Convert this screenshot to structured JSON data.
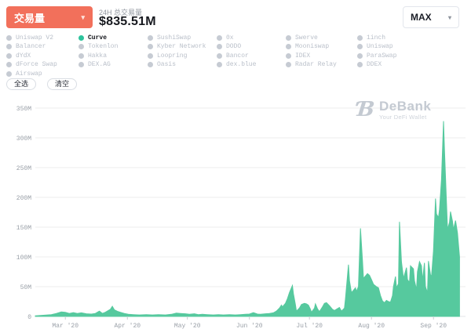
{
  "header": {
    "metric_selector": {
      "label": "交易量",
      "caret": "▾"
    },
    "volume_label": "24H 总交易量",
    "volume_value": "$835.51M",
    "range_selector": {
      "label": "MAX",
      "caret": "▾"
    }
  },
  "legend": {
    "selected": "Curve",
    "columns": [
      [
        "Uniswap V2",
        "Balancer",
        "dYdX",
        "dForce Swap",
        "Airswap"
      ],
      [
        "Curve",
        "Tokenlon",
        "Hakka",
        "DEX.AG"
      ],
      [
        "SushiSwap",
        "Kyber Network",
        "Loopring",
        "Oasis"
      ],
      [
        "0x",
        "DODO",
        "Bancor",
        "dex.blue"
      ],
      [
        "Swerve",
        "Mooniswap",
        "IDEX",
        "Radar Relay"
      ],
      [
        "1inch",
        "Uniswap",
        "ParaSwap",
        "DDEX"
      ]
    ]
  },
  "actions": {
    "select_all": "全选",
    "clear": "清空"
  },
  "watermark": {
    "mark": "Ɓ",
    "name": "DeBank",
    "tagline": "Your DeFi Wallet"
  },
  "colors": {
    "accent_orange": "#f2705b",
    "series_green": "#56c99e",
    "selected_dot": "#2dc39c",
    "grid": "#ececec",
    "axis_text": "#9aa0a8"
  },
  "chart_data": {
    "type": "area",
    "title": "Curve daily trading volume",
    "series_name": "Curve",
    "unit": "USD millions",
    "x_unit": "days since 2020-02-15",
    "xlim": [
      0,
      215
    ],
    "ylim": [
      0,
      360
    ],
    "grid": "horizontal",
    "legend_position": "top",
    "y_ticks": [
      {
        "v": 0,
        "label": "0"
      },
      {
        "v": 50,
        "label": "50M"
      },
      {
        "v": 100,
        "label": "100M"
      },
      {
        "v": 150,
        "label": "150M"
      },
      {
        "v": 200,
        "label": "200M"
      },
      {
        "v": 250,
        "label": "250M"
      },
      {
        "v": 300,
        "label": "300M"
      },
      {
        "v": 350,
        "label": "350M"
      }
    ],
    "x_ticks": [
      {
        "d": 15,
        "label": "Mar '20"
      },
      {
        "d": 46,
        "label": "Apr '20"
      },
      {
        "d": 76,
        "label": "May '20"
      },
      {
        "d": 107,
        "label": "Jun '20"
      },
      {
        "d": 137,
        "label": "Jul '20"
      },
      {
        "d": 168,
        "label": "Aug '20"
      },
      {
        "d": 199,
        "label": "Sep '20"
      }
    ],
    "points": [
      [
        0,
        1
      ],
      [
        4,
        2
      ],
      [
        8,
        3
      ],
      [
        10.5,
        5
      ],
      [
        13,
        7.5
      ],
      [
        15,
        7
      ],
      [
        17,
        5
      ],
      [
        19,
        6.5
      ],
      [
        21,
        5
      ],
      [
        23,
        6
      ],
      [
        25.5,
        4.5
      ],
      [
        28,
        4
      ],
      [
        30,
        5
      ],
      [
        32,
        9
      ],
      [
        33.5,
        5
      ],
      [
        35,
        7
      ],
      [
        36.5,
        10
      ],
      [
        37.5,
        12
      ],
      [
        38.5,
        17
      ],
      [
        39.5,
        11
      ],
      [
        41,
        8.5
      ],
      [
        42.5,
        7
      ],
      [
        44.5,
        5
      ],
      [
        46.5,
        3.5
      ],
      [
        49,
        3
      ],
      [
        52,
        2.5
      ],
      [
        55.5,
        3
      ],
      [
        58.5,
        2.5
      ],
      [
        61.5,
        3
      ],
      [
        65,
        2.5
      ],
      [
        68,
        3.5
      ],
      [
        70.5,
        5.5
      ],
      [
        72.5,
        5
      ],
      [
        75,
        4.5
      ],
      [
        77,
        3.5
      ],
      [
        79.5,
        4.5
      ],
      [
        81.5,
        3
      ],
      [
        83.5,
        3.5
      ],
      [
        86,
        3
      ],
      [
        89,
        2.5
      ],
      [
        91.5,
        3
      ],
      [
        94,
        2.5
      ],
      [
        97,
        3
      ],
      [
        100,
        2.5
      ],
      [
        102.5,
        3
      ],
      [
        105,
        3.5
      ],
      [
        107,
        4
      ],
      [
        109,
        6.5
      ],
      [
        111,
        4
      ],
      [
        112.5,
        3.5
      ],
      [
        115,
        4.5
      ],
      [
        117,
        5
      ],
      [
        119,
        6
      ],
      [
        120.5,
        9
      ],
      [
        122,
        14
      ],
      [
        123,
        19
      ],
      [
        123.5,
        16
      ],
      [
        125,
        22
      ],
      [
        126,
        30
      ],
      [
        127,
        40
      ],
      [
        128.5,
        52
      ],
      [
        129,
        38
      ],
      [
        130,
        20
      ],
      [
        130.5,
        9
      ],
      [
        132,
        14
      ],
      [
        133,
        20
      ],
      [
        134.5,
        22
      ],
      [
        135.5,
        21
      ],
      [
        136.5,
        19
      ],
      [
        137.5,
        12
      ],
      [
        138,
        7
      ],
      [
        139.5,
        14
      ],
      [
        140,
        21
      ],
      [
        141,
        13
      ],
      [
        142,
        8
      ],
      [
        143.5,
        16
      ],
      [
        144.5,
        22
      ],
      [
        145.5,
        23
      ],
      [
        147,
        18
      ],
      [
        148.5,
        12
      ],
      [
        149.5,
        10
      ],
      [
        151,
        13
      ],
      [
        152,
        15
      ],
      [
        153,
        9
      ],
      [
        154.5,
        14
      ],
      [
        155,
        30
      ],
      [
        156.5,
        87
      ],
      [
        157,
        60
      ],
      [
        158,
        40
      ],
      [
        159,
        44
      ],
      [
        160,
        48
      ],
      [
        160.5,
        42
      ],
      [
        161.5,
        50
      ],
      [
        162.5,
        148
      ],
      [
        163.5,
        95
      ],
      [
        164,
        64
      ],
      [
        165,
        68
      ],
      [
        166,
        72
      ],
      [
        167,
        69
      ],
      [
        168,
        62
      ],
      [
        169,
        54
      ],
      [
        170.5,
        50
      ],
      [
        171.5,
        48
      ],
      [
        172.5,
        35
      ],
      [
        173.5,
        26
      ],
      [
        174.5,
        23
      ],
      [
        175.5,
        27
      ],
      [
        176.5,
        25
      ],
      [
        177.5,
        24
      ],
      [
        178.5,
        35
      ],
      [
        179,
        50
      ],
      [
        180,
        67
      ],
      [
        180.5,
        48
      ],
      [
        181.5,
        55
      ],
      [
        182,
        159
      ],
      [
        183,
        92
      ],
      [
        184,
        64
      ],
      [
        184.5,
        70
      ],
      [
        185.5,
        82
      ],
      [
        186,
        62
      ],
      [
        187,
        57
      ],
      [
        187.5,
        85
      ],
      [
        189,
        80
      ],
      [
        189.5,
        60
      ],
      [
        190.5,
        45
      ],
      [
        191,
        75
      ],
      [
        192,
        92
      ],
      [
        193,
        85
      ],
      [
        193.5,
        60
      ],
      [
        194.5,
        90
      ],
      [
        195,
        50
      ],
      [
        196,
        40
      ],
      [
        196.5,
        93
      ],
      [
        197.5,
        70
      ],
      [
        198,
        67
      ],
      [
        199,
        110
      ],
      [
        200,
        198
      ],
      [
        200.5,
        172
      ],
      [
        201.5,
        166
      ],
      [
        202,
        180
      ],
      [
        203,
        230
      ],
      [
        204,
        328
      ],
      [
        204.5,
        280
      ],
      [
        205.5,
        190
      ],
      [
        206,
        146
      ],
      [
        207,
        158
      ],
      [
        207.5,
        176
      ],
      [
        208.5,
        160
      ],
      [
        209,
        146
      ],
      [
        210,
        161
      ],
      [
        211,
        140
      ],
      [
        211.5,
        120
      ],
      [
        212,
        100
      ]
    ]
  }
}
